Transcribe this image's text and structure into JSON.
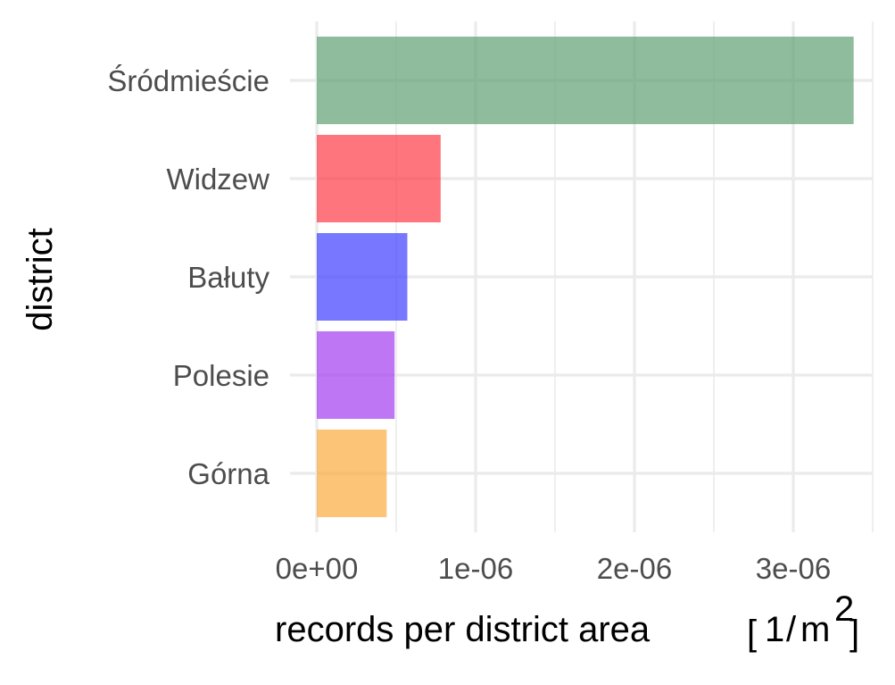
{
  "chart_data": {
    "type": "bar",
    "orientation": "horizontal",
    "categories": [
      "Śródmieście",
      "Widzew",
      "Bałuty",
      "Polesie",
      "Górna"
    ],
    "values": [
      3.38e-06,
      7.8e-07,
      5.7e-07,
      4.9e-07,
      4.4e-07
    ],
    "colors": [
      "#5f9f73",
      "#ff3b47",
      "#3d3dff",
      "#a33cf0",
      "#fbab3d"
    ],
    "bar_opacity": 0.7,
    "xlabel": "records per district area [1/m²]",
    "xlabel_parts": {
      "text": "records per district area",
      "unit_numerator": "1",
      "unit_base": "m",
      "unit_exponent": "2"
    },
    "ylabel": "district",
    "xlim": [
      0,
      3.5e-06
    ],
    "x_ticks": [
      0,
      1e-06,
      2e-06,
      3e-06
    ],
    "x_tick_labels": [
      "0e+00",
      "1e-06",
      "2e-06",
      "3e-06"
    ],
    "grid": true,
    "legend": "none",
    "title": ""
  }
}
